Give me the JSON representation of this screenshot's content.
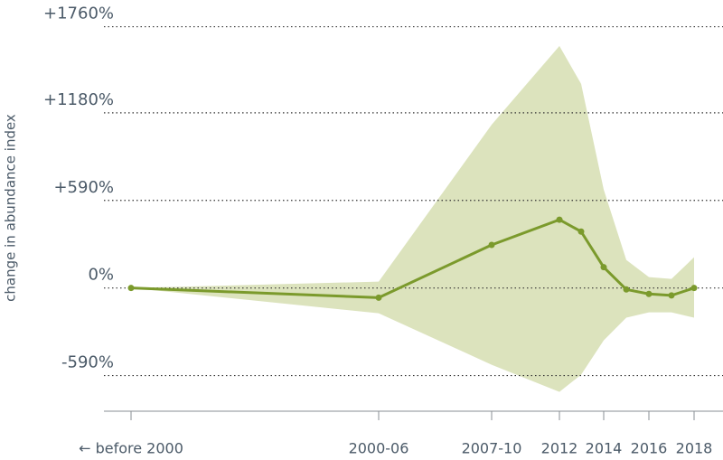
{
  "chart_data": {
    "type": "line",
    "y_axis_label": "change in abundance index",
    "categories": [
      "← before 2000",
      "2000-06",
      "2007-10",
      "2012",
      null,
      "2014",
      null,
      "2016",
      null,
      "2018"
    ],
    "values": [
      0,
      -65,
      290,
      460,
      380,
      140,
      -10,
      -40,
      -50,
      0
    ],
    "upper": [
      0,
      43,
      1100,
      1630,
      1375,
      663,
      189,
      73,
      61,
      207
    ],
    "lower": [
      0,
      -170,
      -517,
      -700,
      -584,
      -353,
      -200,
      -164,
      -164,
      -200
    ],
    "color": "#7b9a2c",
    "band_color": "#dce3bd",
    "ylim": [
      -830,
      1940
    ],
    "yticks": [
      {
        "value": 1760,
        "label": "+1760%"
      },
      {
        "value": 1180,
        "label": "+1180%"
      },
      {
        "value": 590,
        "label": "+590%"
      },
      {
        "value": 0,
        "label": "0%"
      },
      {
        "value": -590,
        "label": "-590%"
      }
    ],
    "grid": true
  }
}
